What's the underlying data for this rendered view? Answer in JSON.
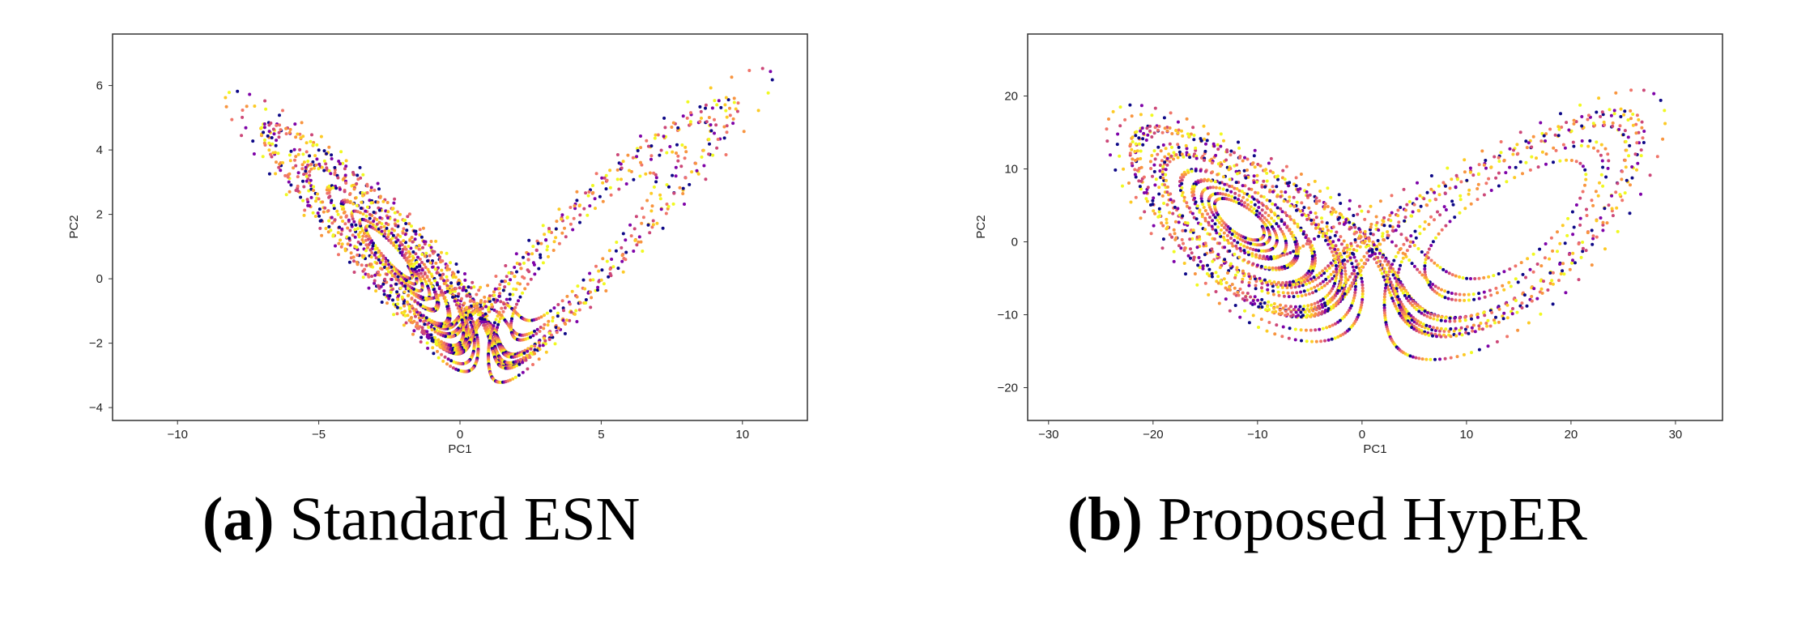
{
  "figure": {
    "captions": [
      {
        "tag": "(a)",
        "text": " Standard ESN"
      },
      {
        "tag": "(b)",
        "text": " Proposed HypER"
      }
    ]
  },
  "colors": {
    "palette": [
      "#0d0887",
      "#7e03a8",
      "#cc4778",
      "#f0756a",
      "#f89540",
      "#fdca26",
      "#f0f921"
    ],
    "frame": "#333333",
    "background": "#ffffff"
  },
  "chart_data": [
    {
      "type": "scatter",
      "title": "",
      "xlabel": "PC1",
      "ylabel": "PC2",
      "xlim": [
        -12.3,
        12.3
      ],
      "ylim": [
        -4.4,
        7.6
      ],
      "xticks": [
        -10,
        -5,
        0,
        5,
        10
      ],
      "yticks": [
        -4,
        -2,
        0,
        2,
        4,
        6
      ],
      "tick_labels_x": [
        "−10",
        "−5",
        "0",
        "5",
        "10"
      ],
      "tick_labels_y": [
        "−4",
        "−2",
        "0",
        "2",
        "4",
        "6"
      ],
      "grid": false,
      "colormap": "plasma (color varies along trajectory)",
      "description": "Dense point trajectory of standard ESN reservoir states projected on first two principal components; two wing lobes meeting near (1,-3.2), spanning x approx -11 to 11 and y approx -3.8 to 7"
    },
    {
      "type": "scatter",
      "title": "",
      "xlabel": "PC1",
      "ylabel": "PC2",
      "xlim": [
        -32,
        34.5
      ],
      "ylim": [
        -24.5,
        28.5
      ],
      "xticks": [
        -30,
        -20,
        -10,
        0,
        10,
        20,
        30
      ],
      "yticks": [
        -20,
        -10,
        0,
        10,
        20
      ],
      "tick_labels_x": [
        "−30",
        "−20",
        "−10",
        "0",
        "10",
        "20",
        "30"
      ],
      "tick_labels_y": [
        "−20",
        "−10",
        "0",
        "10",
        "20"
      ],
      "grid": false,
      "colormap": "plasma (color varies along trajectory)",
      "description": "Butterfly-shaped Lorenz-like attractor of HypER reservoir states projected on first two principal components; two spiral lobes centered near (-13,5) and (15,4), spanning x approx -28 to 32 and y approx -22 to 25"
    }
  ]
}
